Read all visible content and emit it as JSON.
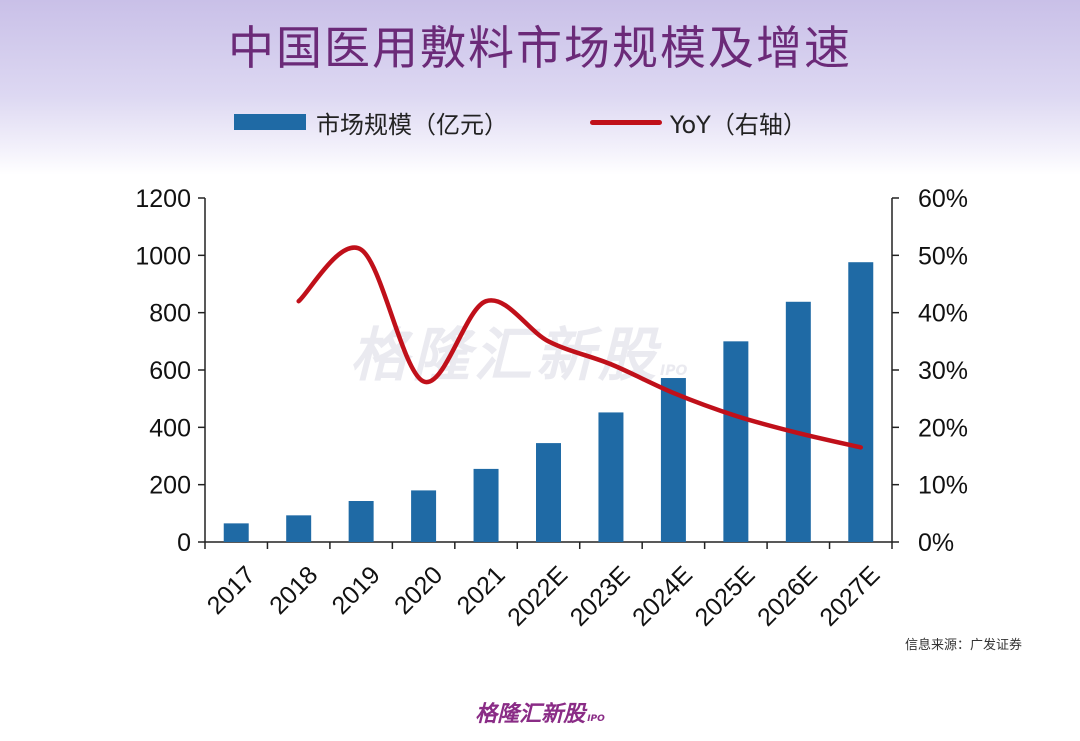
{
  "title": "中国医用敷料市场规模及增速",
  "legend": {
    "bars_label": "市场规模（亿元）",
    "line_label": "YoY（右轴）"
  },
  "source": "信息来源：广发证券",
  "watermark": {
    "text": "格隆汇新股",
    "sub": "IPO"
  },
  "footer": {
    "logo": "格隆汇新股",
    "sub": "IPO"
  },
  "colors": {
    "bar": "#1f6aa5",
    "line": "#c0101a",
    "title": "#6b2a78"
  },
  "chart_data": {
    "type": "bar",
    "categories": [
      "2017",
      "2018",
      "2019",
      "2020",
      "2021",
      "2022E",
      "2023E",
      "2024E",
      "2025E",
      "2026E",
      "2027E"
    ],
    "series": [
      {
        "name": "市场规模（亿元）",
        "type": "bar",
        "axis": "left",
        "values": [
          65,
          93,
          143,
          180,
          255,
          345,
          452,
          572,
          700,
          838,
          976
        ]
      },
      {
        "name": "YoY（右轴）",
        "type": "line",
        "axis": "right",
        "values": [
          null,
          42,
          51,
          28,
          42,
          35,
          31,
          26,
          22,
          19,
          16.5
        ]
      }
    ],
    "ylim_left": [
      0,
      1200
    ],
    "yticks_left": [
      "0",
      "200",
      "400",
      "600",
      "800",
      "1000",
      "1200"
    ],
    "ylim_right": [
      0,
      60
    ],
    "yticks_right": [
      "0%",
      "10%",
      "20%",
      "30%",
      "40%",
      "50%",
      "60%"
    ],
    "grid": false,
    "legend_position": "top"
  }
}
